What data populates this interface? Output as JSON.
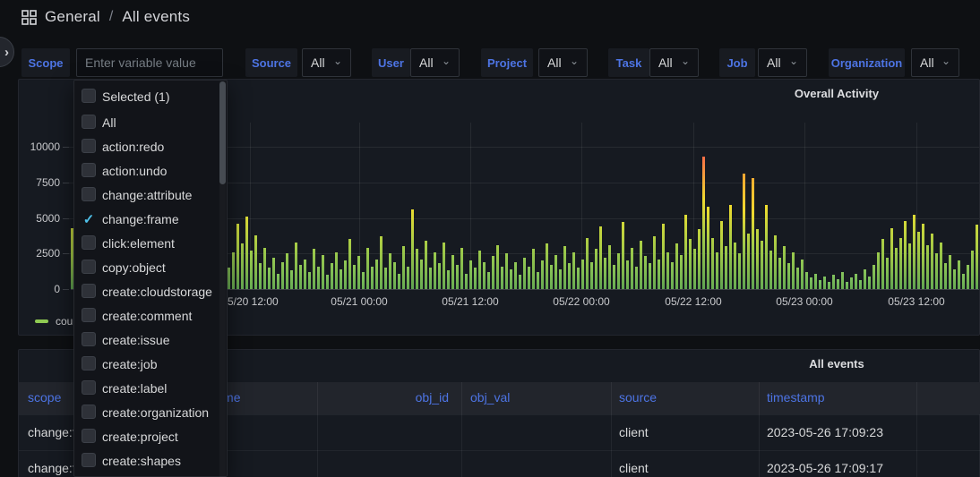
{
  "page": {
    "breadcrumb": {
      "section": "General",
      "separator": "/",
      "title": "All events"
    }
  },
  "sidebar_toggle": {
    "chevron": "›"
  },
  "filters": {
    "scope_label": "Scope",
    "scope_placeholder": "Enter variable value",
    "dropdowns": [
      {
        "label": "Source",
        "value": "All"
      },
      {
        "label": "User",
        "value": "All"
      },
      {
        "label": "Project",
        "value": "All"
      },
      {
        "label": "Task",
        "value": "All"
      },
      {
        "label": "Job",
        "value": "All"
      },
      {
        "label": "Organization",
        "value": "All"
      }
    ],
    "select_caret": "⌄"
  },
  "scope_dropdown": {
    "items": [
      {
        "label": "Selected (1)",
        "checked": false
      },
      {
        "label": "All",
        "checked": false
      },
      {
        "label": "action:redo",
        "checked": false
      },
      {
        "label": "action:undo",
        "checked": false
      },
      {
        "label": "change:attribute",
        "checked": false
      },
      {
        "label": "change:frame",
        "checked": true
      },
      {
        "label": "click:element",
        "checked": false
      },
      {
        "label": "copy:object",
        "checked": false
      },
      {
        "label": "create:cloudstorage",
        "checked": false
      },
      {
        "label": "create:comment",
        "checked": false
      },
      {
        "label": "create:issue",
        "checked": false
      },
      {
        "label": "create:job",
        "checked": false
      },
      {
        "label": "create:label",
        "checked": false
      },
      {
        "label": "create:organization",
        "checked": false
      },
      {
        "label": "create:project",
        "checked": false
      },
      {
        "label": "create:shapes",
        "checked": false
      }
    ],
    "checkmark": "✓"
  },
  "chart_data": {
    "type": "bar",
    "title": "Overall Activity",
    "legend": [
      "count"
    ],
    "legend_position": "bottom-left",
    "grid": true,
    "ylim": [
      0,
      10000
    ],
    "y_ticks": [
      0,
      2500,
      5000,
      7500,
      10000
    ],
    "x_tick_labels": [
      "05/20 12:00",
      "05/21 00:00",
      "05/21 12:00",
      "05/22 00:00",
      "05/22 12:00",
      "05/23 00:00",
      "05/23 12:00"
    ],
    "series": [
      {
        "name": "count",
        "values": [
          4300,
          2600,
          900,
          1400,
          700,
          1800,
          1100,
          2300,
          800,
          1500,
          2800,
          1200,
          600,
          1900,
          1000,
          2400,
          1300,
          700,
          2100,
          900,
          1600,
          2900,
          1100,
          1800,
          800,
          2200,
          1400,
          3100,
          1000,
          1700,
          900,
          2500,
          1200,
          1900,
          700,
          1500,
          2600,
          4600,
          3200,
          5100,
          2700,
          3800,
          1800,
          2900,
          1500,
          2200,
          1100,
          1900,
          2500,
          1300,
          3300,
          1700,
          2100,
          1200,
          2800,
          1600,
          2400,
          1000,
          1800,
          2600,
          1400,
          2000,
          3500,
          1700,
          2300,
          1200,
          2900,
          1600,
          2100,
          3700,
          1500,
          2500,
          1900,
          1100,
          3000,
          1600,
          5600,
          2800,
          2100,
          3400,
          1500,
          2600,
          1800,
          3300,
          1300,
          2400,
          1700,
          2900,
          1100,
          2000,
          1500,
          2700,
          1900,
          1200,
          2300,
          3100,
          1600,
          2500,
          1400,
          1900,
          1000,
          2200,
          1600,
          2800,
          1200,
          2000,
          3200,
          1700,
          2400,
          1400,
          3000,
          1800,
          2600,
          1500,
          2100,
          3600,
          1900,
          2800,
          4400,
          2200,
          3100,
          1700,
          2500,
          4700,
          2000,
          2900,
          1600,
          3400,
          2300,
          1800,
          3700,
          2100,
          4600,
          2600,
          1900,
          3200,
          2400,
          5200,
          3500,
          2800,
          4200,
          9300,
          5800,
          3600,
          2600,
          4800,
          3000,
          5900,
          3300,
          2500,
          8100,
          3900,
          7800,
          4200,
          3400,
          5900,
          2700,
          3800,
          2200,
          3000,
          1800,
          2600,
          1500,
          2100,
          1200,
          800,
          1100,
          600,
          900,
          500,
          1000,
          700,
          1200,
          500,
          800,
          1100,
          600,
          1400,
          900,
          1700,
          2600,
          3500,
          2200,
          4300,
          2900,
          3600,
          4800,
          3200,
          5200,
          4000,
          4600,
          3100,
          3900,
          2500,
          3300,
          1800,
          2400,
          1400,
          2000,
          1100,
          1700,
          2700,
          4500,
          2900
        ]
      }
    ],
    "palette": {
      "low": "#73BF69",
      "mid": "#FADE2A",
      "high": "#FF9830",
      "peak": "#F2495C"
    }
  },
  "table": {
    "title": "All events",
    "columns": [
      "scope",
      "obj_name",
      "obj_id",
      "obj_val",
      "source",
      "timestamp"
    ],
    "rows": [
      {
        "scope": "change:frame",
        "obj_name": "",
        "obj_id": "",
        "obj_val": "",
        "source": "client",
        "timestamp": "2023-05-26 17:09:23"
      },
      {
        "scope": "change:frame",
        "obj_name": "",
        "obj_id": "",
        "obj_val": "",
        "source": "client",
        "timestamp": "2023-05-26 17:09:17"
      }
    ]
  },
  "colors": {
    "accent_blue": "#4d74e4",
    "check_cyan": "#4fc0e8",
    "legend_green": "#8fca52",
    "page_bg": "#0e1013",
    "panel_bg": "#161a21"
  }
}
